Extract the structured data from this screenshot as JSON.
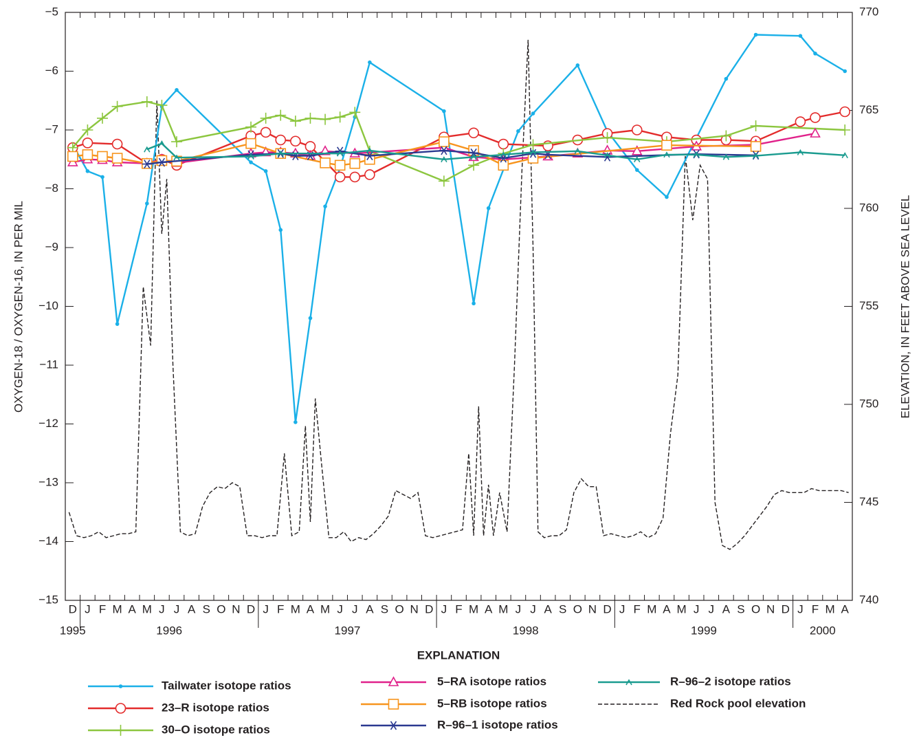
{
  "chart_data": {
    "type": "line",
    "y_label": "OXYGEN-18 / OXYGEN-16, IN PER MIL",
    "y2_label": "ELEVATION, IN FEET ABOVE SEA LEVEL",
    "legend_title": "EXPLANATION",
    "xlim": [
      "1995-12",
      "2000-04"
    ],
    "month_labels": [
      "D",
      "J",
      "F",
      "M",
      "A",
      "M",
      "J",
      "J",
      "A",
      "S",
      "O",
      "N",
      "D",
      "J",
      "F",
      "M",
      "A",
      "M",
      "J",
      "J",
      "A",
      "S",
      "O",
      "N",
      "D",
      "J",
      "F",
      "M",
      "A",
      "M",
      "J",
      "J",
      "A",
      "S",
      "O",
      "N",
      "D",
      "J",
      "F",
      "M",
      "A",
      "M",
      "J",
      "J",
      "A",
      "S",
      "O",
      "N",
      "D",
      "J",
      "F",
      "M",
      "A"
    ],
    "year_labels": [
      "1995",
      "1996",
      "1997",
      "1998",
      "1999",
      "2000"
    ],
    "ylim": [
      -15,
      -5
    ],
    "yticks": [
      {
        "value": -5,
        "label": "−5"
      },
      {
        "value": -6,
        "label": "−6"
      },
      {
        "value": -7,
        "label": "−7"
      },
      {
        "value": -8,
        "label": "−8"
      },
      {
        "value": -9,
        "label": "−9"
      },
      {
        "value": -10,
        "label": "−10"
      },
      {
        "value": -11,
        "label": "−11"
      },
      {
        "value": -12,
        "label": "−12"
      },
      {
        "value": -13,
        "label": "−13"
      },
      {
        "value": -14,
        "label": "−14"
      },
      {
        "value": -15,
        "label": "−15"
      }
    ],
    "y2lim": [
      740,
      770
    ],
    "y2ticks": [
      740,
      745,
      750,
      755,
      760,
      765,
      770
    ],
    "series": [
      {
        "name": "Tailwater isotope ratios",
        "color": "#1ab0e8",
        "marker": "dot",
        "x": [
          "1995-12",
          "1996-01",
          "1996-02",
          "1996-03",
          "1996-05",
          "1996-06",
          "1996-07",
          "1996-12",
          "1997-01",
          "1997-02",
          "1997-03",
          "1997-04",
          "1997-05",
          "1997-06",
          "1997-07",
          "1997-08",
          "1998-01",
          "1998-03",
          "1998-04",
          "1998-06",
          "1998-07",
          "1998-10",
          "1998-12",
          "1999-02",
          "1999-04",
          "1999-08",
          "1999-10",
          "2000-01",
          "2000-02",
          "2000-04"
        ],
        "values": [
          -7.25,
          -7.7,
          -7.8,
          -10.3,
          -8.25,
          -6.6,
          -6.32,
          -7.55,
          -7.7,
          -8.7,
          -11.97,
          -10.2,
          -8.3,
          -7.65,
          -6.78,
          -5.85,
          -6.68,
          -9.95,
          -8.33,
          -7.02,
          -6.72,
          -5.9,
          -7.02,
          -7.68,
          -8.14,
          -6.13,
          -5.38,
          -5.4,
          -5.7,
          -6.0
        ]
      },
      {
        "name": "23–R isotope ratios",
        "color": "#e32b2b",
        "marker": "circle",
        "x": [
          "1995-12",
          "1996-01",
          "1996-03",
          "1996-05",
          "1996-06",
          "1996-07",
          "1996-12",
          "1997-01",
          "1997-02",
          "1997-03",
          "1997-04",
          "1997-06",
          "1997-07",
          "1997-08",
          "1998-01",
          "1998-03",
          "1998-05",
          "1998-08",
          "1998-10",
          "1998-12",
          "1999-02",
          "1999-04",
          "1999-06",
          "1999-08",
          "1999-10",
          "2000-01",
          "2000-02",
          "2000-04"
        ],
        "values": [
          -7.3,
          -7.22,
          -7.24,
          -7.57,
          -7.5,
          -7.6,
          -7.1,
          -7.04,
          -7.17,
          -7.19,
          -7.28,
          -7.8,
          -7.8,
          -7.76,
          -7.12,
          -7.05,
          -7.24,
          -7.27,
          -7.17,
          -7.06,
          -7.0,
          -7.12,
          -7.17,
          -7.17,
          -7.19,
          -6.86,
          -6.79,
          -6.69
        ]
      },
      {
        "name": "30–O isotope ratios",
        "color": "#8cc63f",
        "marker": "plus",
        "x": [
          "1995-12",
          "1996-01",
          "1996-02",
          "1996-03",
          "1996-05",
          "1996-06",
          "1996-07",
          "1996-12",
          "1997-01",
          "1997-02",
          "1997-03",
          "1997-04",
          "1997-05",
          "1997-06",
          "1997-07",
          "1997-08",
          "1998-01",
          "1998-03",
          "1998-05",
          "1998-07",
          "1998-12",
          "1999-04",
          "1999-08",
          "1999-10",
          "2000-04"
        ],
        "values": [
          -7.3,
          -7.0,
          -6.8,
          -6.6,
          -6.52,
          -6.58,
          -7.2,
          -6.95,
          -6.8,
          -6.75,
          -6.85,
          -6.8,
          -6.82,
          -6.78,
          -6.7,
          -7.36,
          -7.87,
          -7.6,
          -7.4,
          -7.25,
          -7.13,
          -7.2,
          -7.1,
          -6.93,
          -7.0
        ]
      },
      {
        "name": "5–RA isotope ratios",
        "color": "#e0218a",
        "marker": "triangle",
        "x": [
          "1995-12",
          "1996-01",
          "1996-02",
          "1996-03",
          "1996-05",
          "1996-06",
          "1996-07",
          "1996-12",
          "1997-01",
          "1997-02",
          "1997-03",
          "1997-04",
          "1997-05",
          "1997-07",
          "1998-01",
          "1998-03",
          "1998-05",
          "1998-08",
          "1998-10",
          "1998-12",
          "1999-02",
          "1999-06",
          "1999-10",
          "2000-02"
        ],
        "values": [
          -7.55,
          -7.5,
          -7.51,
          -7.55,
          -7.57,
          -7.5,
          -7.56,
          -7.4,
          -7.38,
          -7.38,
          -7.4,
          -7.44,
          -7.36,
          -7.4,
          -7.3,
          -7.46,
          -7.5,
          -7.45,
          -7.4,
          -7.35,
          -7.36,
          -7.28,
          -7.25,
          -7.06
        ]
      },
      {
        "name": "5–RB isotope ratios",
        "color": "#f7941d",
        "marker": "square",
        "x": [
          "1995-12",
          "1996-01",
          "1996-02",
          "1996-03",
          "1996-05",
          "1996-06",
          "1996-07",
          "1996-12",
          "1997-02",
          "1997-05",
          "1997-06",
          "1997-07",
          "1997-08",
          "1998-01",
          "1998-03",
          "1998-05",
          "1998-07",
          "1999-04",
          "1999-10"
        ],
        "values": [
          -7.45,
          -7.42,
          -7.45,
          -7.48,
          -7.57,
          -7.52,
          -7.53,
          -7.23,
          -7.4,
          -7.56,
          -7.6,
          -7.57,
          -7.5,
          -7.2,
          -7.35,
          -7.6,
          -7.48,
          -7.26,
          -7.28
        ]
      },
      {
        "name": "R–96–1 isotope ratios",
        "color": "#2b3990",
        "marker": "asterisk",
        "x": [
          "1996-05",
          "1996-06",
          "1996-12",
          "1997-02",
          "1997-03",
          "1997-04",
          "1997-06",
          "1997-08",
          "1998-01",
          "1998-03",
          "1998-05",
          "1998-07",
          "1998-08",
          "1998-12",
          "1999-06",
          "1999-10"
        ],
        "values": [
          -7.58,
          -7.55,
          -7.42,
          -7.4,
          -7.44,
          -7.44,
          -7.36,
          -7.44,
          -7.35,
          -7.39,
          -7.48,
          -7.4,
          -7.42,
          -7.46,
          -7.41,
          -7.43
        ]
      },
      {
        "name": "R–96–2 isotope ratios",
        "color": "#1a9b8f",
        "marker": "caret",
        "x": [
          "1996-05",
          "1996-06",
          "1996-07",
          "1996-12",
          "1997-02",
          "1997-06",
          "1997-08",
          "1998-01",
          "1998-03",
          "1998-05",
          "1998-07",
          "1998-10",
          "1998-12",
          "1999-02",
          "1999-04",
          "1999-06",
          "1999-08",
          "1999-10",
          "2000-01",
          "2000-04"
        ],
        "values": [
          -7.33,
          -7.23,
          -7.47,
          -7.45,
          -7.4,
          -7.4,
          -7.35,
          -7.5,
          -7.46,
          -7.42,
          -7.38,
          -7.36,
          -7.43,
          -7.5,
          -7.42,
          -7.42,
          -7.46,
          -7.44,
          -7.38,
          -7.43
        ]
      },
      {
        "name": "Red Rock pool elevation",
        "color": "#231f20",
        "marker": "none",
        "line_style": "dashed",
        "axis": "y2",
        "x": [
          "1995-12",
          "1995-12",
          "1996-01",
          "1996-01",
          "1996-02",
          "1996-02",
          "1996-03",
          "1996-03",
          "1996-04",
          "1996-04",
          "1996-05",
          "1996-05",
          "1996-06",
          "1996-06",
          "1996-06",
          "1996-07",
          "1996-07",
          "1996-08",
          "1996-08",
          "1996-09",
          "1996-09",
          "1996-10",
          "1996-10",
          "1996-11",
          "1996-11",
          "1996-12",
          "1996-12",
          "1997-01",
          "1997-01",
          "1997-02",
          "1997-02",
          "1997-03",
          "1997-03",
          "1997-04",
          "1997-04",
          "1997-04",
          "1997-05",
          "1997-05",
          "1997-06",
          "1997-06",
          "1997-07",
          "1997-07",
          "1997-08",
          "1997-08",
          "1997-09",
          "1997-09",
          "1997-10",
          "1997-10",
          "1997-11",
          "1997-11",
          "1997-12",
          "1997-12",
          "1998-01",
          "1998-01",
          "1998-02",
          "1998-02",
          "1998-03",
          "1998-03",
          "1998-03",
          "1998-04",
          "1998-04",
          "1998-04",
          "1998-05",
          "1998-05",
          "1998-06",
          "1998-06",
          "1998-07",
          "1998-07",
          "1998-07",
          "1998-08",
          "1998-08",
          "1998-09",
          "1998-09",
          "1998-10",
          "1998-10",
          "1998-11",
          "1998-11",
          "1998-12",
          "1998-12",
          "1999-01",
          "1999-01",
          "1999-02",
          "1999-02",
          "1999-03",
          "1999-03",
          "1999-04",
          "1999-04",
          "1999-05",
          "1999-05",
          "1999-06",
          "1999-06",
          "1999-07",
          "1999-07",
          "1999-08",
          "1999-08",
          "1999-09",
          "1999-09",
          "1999-10",
          "1999-10",
          "1999-11",
          "1999-11",
          "1999-12",
          "1999-12",
          "2000-01",
          "2000-01",
          "2000-02",
          "2000-02",
          "2000-03",
          "2000-03",
          "2000-04",
          "2000-04"
        ],
        "values": [
          744.5,
          743.3,
          743.2,
          743.3,
          743.5,
          743.2,
          743.3,
          743.4,
          743.4,
          743.5,
          756,
          753,
          765.5,
          758.7,
          761.5,
          752,
          743.5,
          743.3,
          743.4,
          744.8,
          745.5,
          745.8,
          745.7,
          746,
          745.8,
          743.3,
          743.3,
          743.2,
          743.3,
          743.3,
          747.5,
          743.3,
          743.5,
          748.9,
          744,
          750.3,
          747,
          743.2,
          743.2,
          743.5,
          743.0,
          743.2,
          743.1,
          743.4,
          743.8,
          744.3,
          745.6,
          745.4,
          745.2,
          745.5,
          743.3,
          743.2,
          743.3,
          743.4,
          743.5,
          743.6,
          747.5,
          743.3,
          749.9,
          743.3,
          745.9,
          743.3,
          745.5,
          743.5,
          752,
          761.9,
          768.6,
          758,
          743.5,
          743.2,
          743.3,
          743.3,
          743.6,
          745.5,
          746.2,
          745.8,
          745.8,
          743.3,
          743.4,
          743.3,
          743.2,
          743.3,
          743.5,
          743.2,
          743.4,
          744.2,
          748.5,
          751.5,
          762.7,
          759.4,
          762.2,
          761.5,
          745,
          742.8,
          742.6,
          742.9,
          743.3,
          743.8,
          744.3,
          744.8,
          745.4,
          745.6,
          745.5,
          745.5,
          745.5,
          745.7,
          745.6,
          745.6,
          745.6,
          745.6,
          745.5
        ]
      }
    ]
  }
}
